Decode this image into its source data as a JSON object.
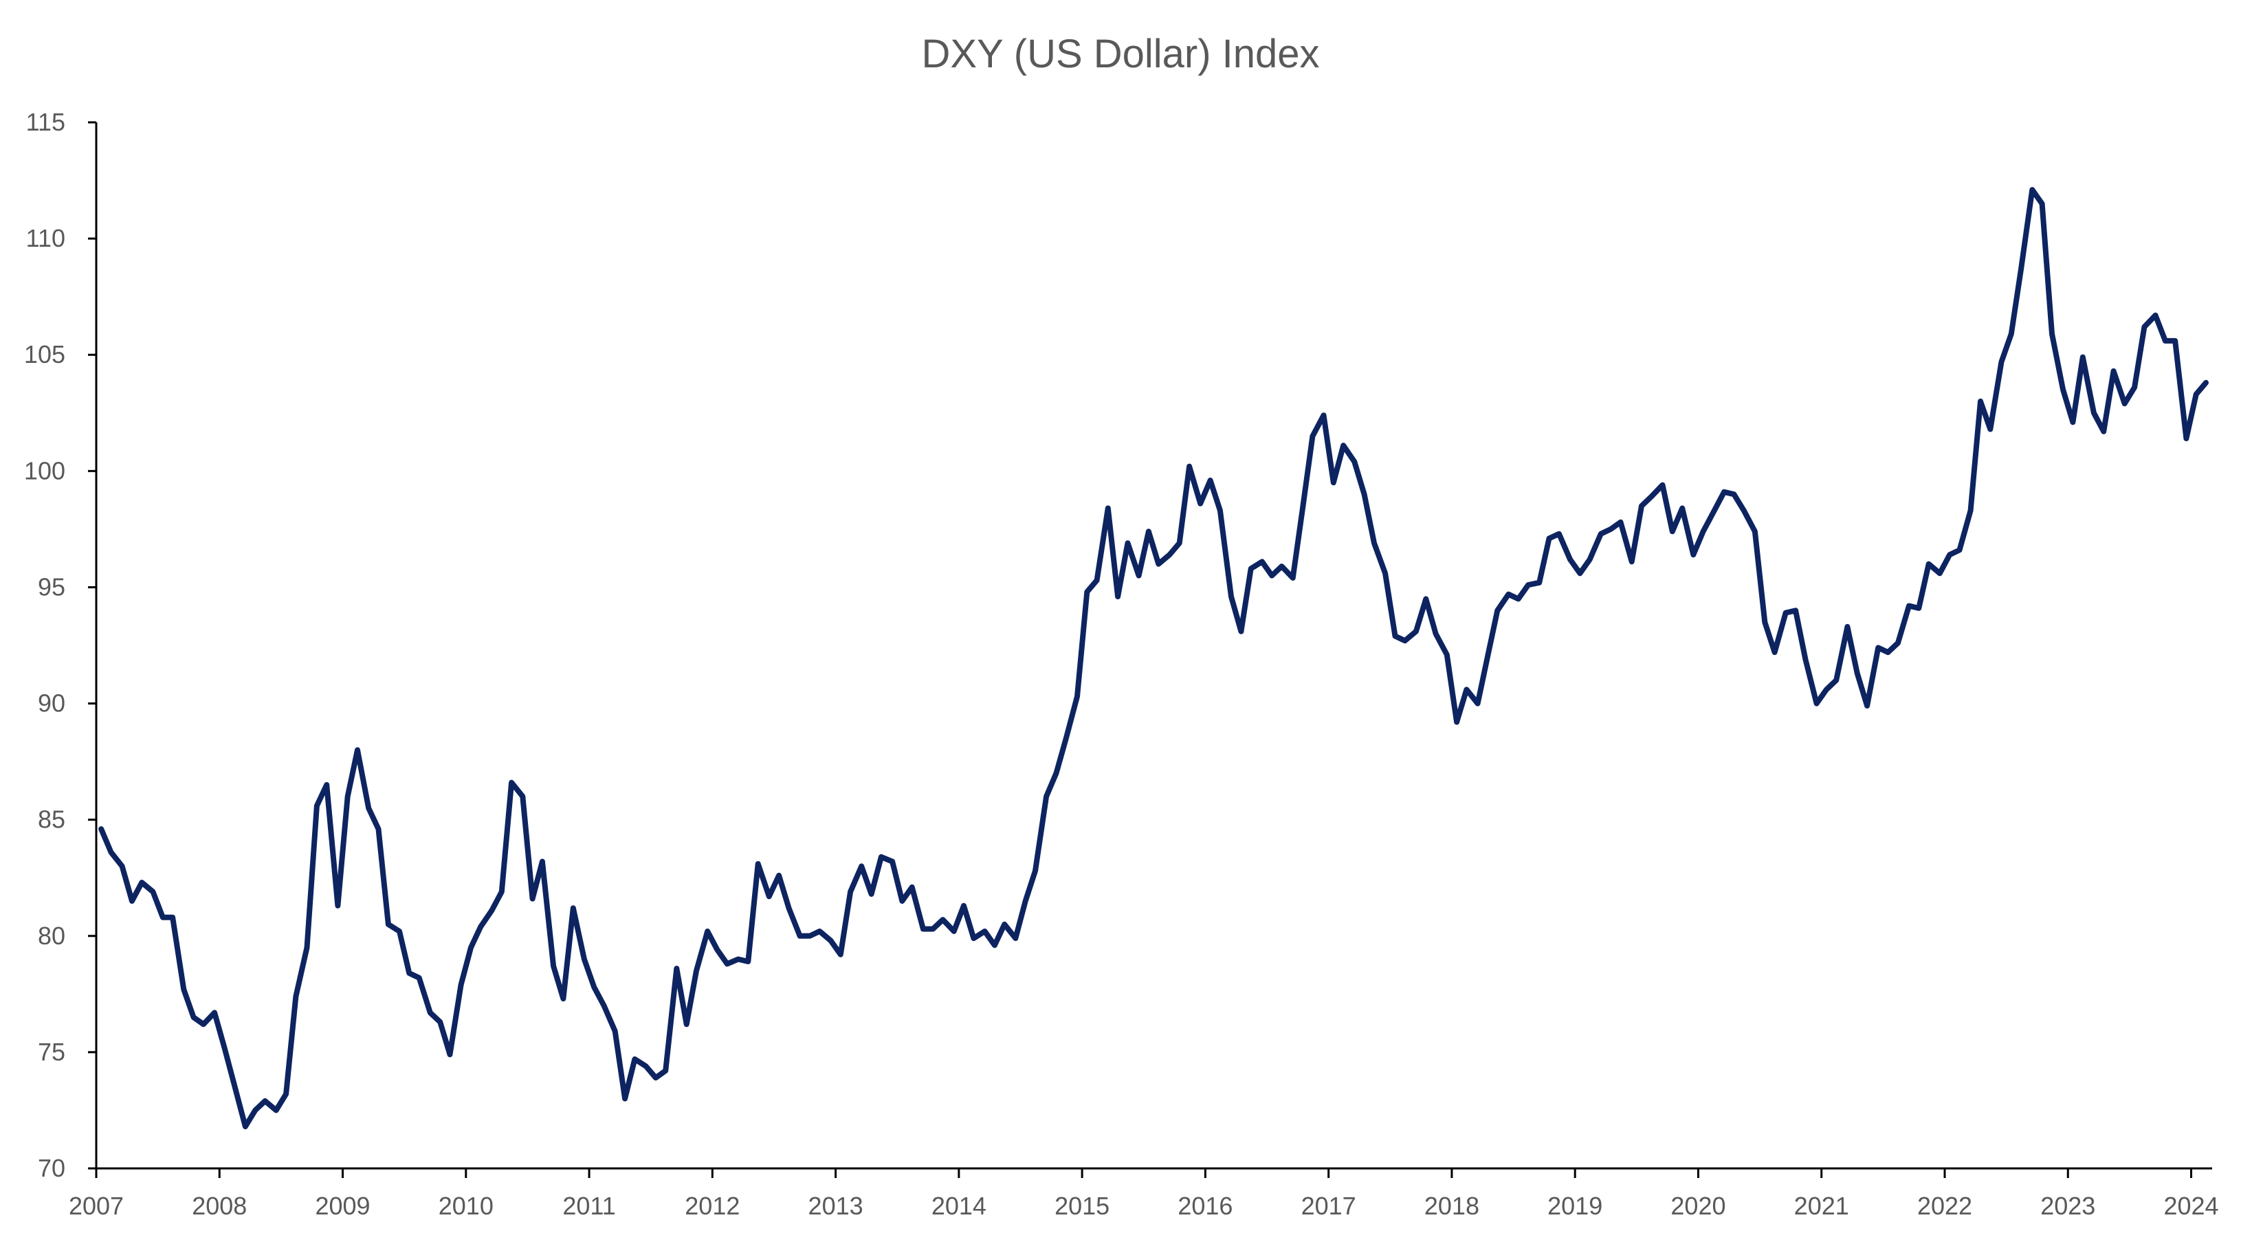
{
  "chart_data": {
    "type": "line",
    "title": "DXY (US Dollar) Index",
    "xlabel": "",
    "ylabel": "",
    "ylim": [
      70,
      115
    ],
    "yticks": [
      70,
      75,
      80,
      85,
      90,
      95,
      100,
      105,
      110,
      115
    ],
    "xlim": [
      2007.0,
      2024.17
    ],
    "xticks": [
      "2007",
      "2008",
      "2009",
      "2010",
      "2011",
      "2012",
      "2013",
      "2014",
      "2015",
      "2016",
      "2017",
      "2018",
      "2019",
      "2020",
      "2021",
      "2022",
      "2023",
      "2024"
    ],
    "grid": false,
    "legend": "none",
    "line_color": "#0d2461",
    "series": [
      {
        "x": [
          2007.04,
          2007.12,
          2007.21,
          2007.29,
          2007.37,
          2007.46,
          2007.54,
          2007.62,
          2007.71,
          2007.79,
          2007.87,
          2007.96,
          2008.04,
          2008.12,
          2008.21,
          2008.29,
          2008.37,
          2008.46,
          2008.54,
          2008.62,
          2008.71,
          2008.79,
          2008.87,
          2008.96,
          2009.04,
          2009.12,
          2009.21,
          2009.29,
          2009.37,
          2009.46,
          2009.54,
          2009.62,
          2009.71,
          2009.79,
          2009.87,
          2009.96,
          2010.04,
          2010.12,
          2010.21,
          2010.29,
          2010.37,
          2010.46,
          2010.54,
          2010.62,
          2010.71,
          2010.79,
          2010.87,
          2010.96,
          2011.04,
          2011.12,
          2011.21,
          2011.29,
          2011.37,
          2011.46,
          2011.54,
          2011.62,
          2011.71,
          2011.79,
          2011.87,
          2011.96,
          2012.04,
          2012.12,
          2012.21,
          2012.29,
          2012.37,
          2012.46,
          2012.54,
          2012.62,
          2012.71,
          2012.79,
          2012.87,
          2012.96,
          2013.04,
          2013.12,
          2013.21,
          2013.29,
          2013.37,
          2013.46,
          2013.54,
          2013.62,
          2013.71,
          2013.79,
          2013.87,
          2013.96,
          2014.04,
          2014.12,
          2014.21,
          2014.29,
          2014.37,
          2014.46,
          2014.54,
          2014.62,
          2014.71,
          2014.79,
          2014.87,
          2014.96,
          2015.04,
          2015.12,
          2015.21,
          2015.29,
          2015.37,
          2015.46,
          2015.54,
          2015.62,
          2015.71,
          2015.79,
          2015.87,
          2015.96,
          2016.04,
          2016.12,
          2016.21,
          2016.29,
          2016.37,
          2016.46,
          2016.54,
          2016.62,
          2016.71,
          2016.79,
          2016.87,
          2016.96,
          2017.04,
          2017.12,
          2017.21,
          2017.29,
          2017.37,
          2017.46,
          2017.54,
          2017.62,
          2017.71,
          2017.79,
          2017.87,
          2017.96,
          2018.04,
          2018.12,
          2018.21,
          2018.29,
          2018.37,
          2018.46,
          2018.54,
          2018.62,
          2018.71,
          2018.79,
          2018.87,
          2018.96,
          2019.04,
          2019.12,
          2019.21,
          2019.29,
          2019.37,
          2019.46,
          2019.54,
          2019.62,
          2019.71,
          2019.79,
          2019.87,
          2019.96,
          2020.04,
          2020.12,
          2020.21,
          2020.29,
          2020.37,
          2020.46,
          2020.54,
          2020.62,
          2020.71,
          2020.79,
          2020.87,
          2020.96,
          2021.04,
          2021.12,
          2021.21,
          2021.29,
          2021.37,
          2021.46,
          2021.54,
          2021.62,
          2021.71,
          2021.79,
          2021.87,
          2021.96,
          2022.04,
          2022.12,
          2022.21,
          2022.29,
          2022.37,
          2022.46,
          2022.54,
          2022.62,
          2022.71,
          2022.79,
          2022.87,
          2022.96,
          2023.04,
          2023.12,
          2023.21,
          2023.29,
          2023.37,
          2023.46,
          2023.54,
          2023.62,
          2023.71,
          2023.79,
          2023.87,
          2023.96,
          2024.04,
          2024.12
        ],
        "y": [
          84.6,
          83.6,
          83.0,
          81.5,
          82.3,
          81.9,
          80.8,
          80.8,
          77.7,
          76.5,
          76.2,
          76.7,
          75.2,
          73.6,
          71.8,
          72.5,
          72.9,
          72.5,
          73.2,
          77.4,
          79.5,
          85.6,
          86.5,
          81.3,
          86.0,
          88.0,
          85.5,
          84.6,
          80.5,
          80.2,
          78.4,
          78.2,
          76.7,
          76.3,
          74.9,
          77.9,
          79.5,
          80.4,
          81.1,
          81.9,
          86.6,
          86.0,
          81.6,
          83.2,
          78.7,
          77.3,
          81.2,
          79.0,
          77.8,
          77.0,
          75.9,
          73.0,
          74.7,
          74.4,
          73.9,
          74.2,
          78.6,
          76.2,
          78.5,
          80.2,
          79.4,
          78.8,
          79.0,
          78.9,
          83.1,
          81.7,
          82.6,
          81.2,
          80.0,
          80.0,
          80.2,
          79.8,
          79.2,
          81.9,
          83.0,
          81.8,
          83.4,
          83.2,
          81.5,
          82.1,
          80.3,
          80.3,
          80.7,
          80.2,
          81.3,
          79.9,
          80.2,
          79.6,
          80.5,
          79.9,
          81.5,
          82.8,
          86.0,
          87.0,
          88.5,
          90.3,
          94.8,
          95.3,
          98.4,
          94.6,
          96.9,
          95.5,
          97.4,
          96.0,
          96.4,
          96.9,
          100.2,
          98.6,
          99.6,
          98.3,
          94.6,
          93.1,
          95.8,
          96.1,
          95.5,
          95.9,
          95.4,
          98.4,
          101.5,
          102.4,
          99.5,
          101.1,
          100.4,
          99.0,
          96.9,
          95.6,
          92.9,
          92.7,
          93.1,
          94.5,
          93.0,
          92.1,
          89.2,
          90.6,
          90.0,
          92.0,
          94.0,
          94.7,
          94.5,
          95.1,
          95.2,
          97.1,
          97.3,
          96.2,
          95.6,
          96.2,
          97.3,
          97.5,
          97.8,
          96.1,
          98.5,
          98.9,
          99.4,
          97.4,
          98.4,
          96.4,
          97.4,
          98.2,
          99.1,
          99.0,
          98.3,
          97.4,
          93.5,
          92.2,
          93.9,
          94.0,
          91.9,
          90.0,
          90.6,
          91.0,
          93.3,
          91.3,
          89.9,
          92.4,
          92.2,
          92.6,
          94.2,
          94.1,
          96.0,
          95.6,
          96.4,
          96.6,
          98.3,
          103.0,
          101.8,
          104.7,
          105.9,
          108.7,
          112.1,
          111.5,
          105.9,
          103.5,
          102.1,
          104.9,
          102.5,
          101.7,
          104.3,
          102.9,
          103.6,
          106.2,
          106.7,
          105.6,
          105.6,
          101.4,
          103.3,
          103.8
        ]
      }
    ]
  }
}
